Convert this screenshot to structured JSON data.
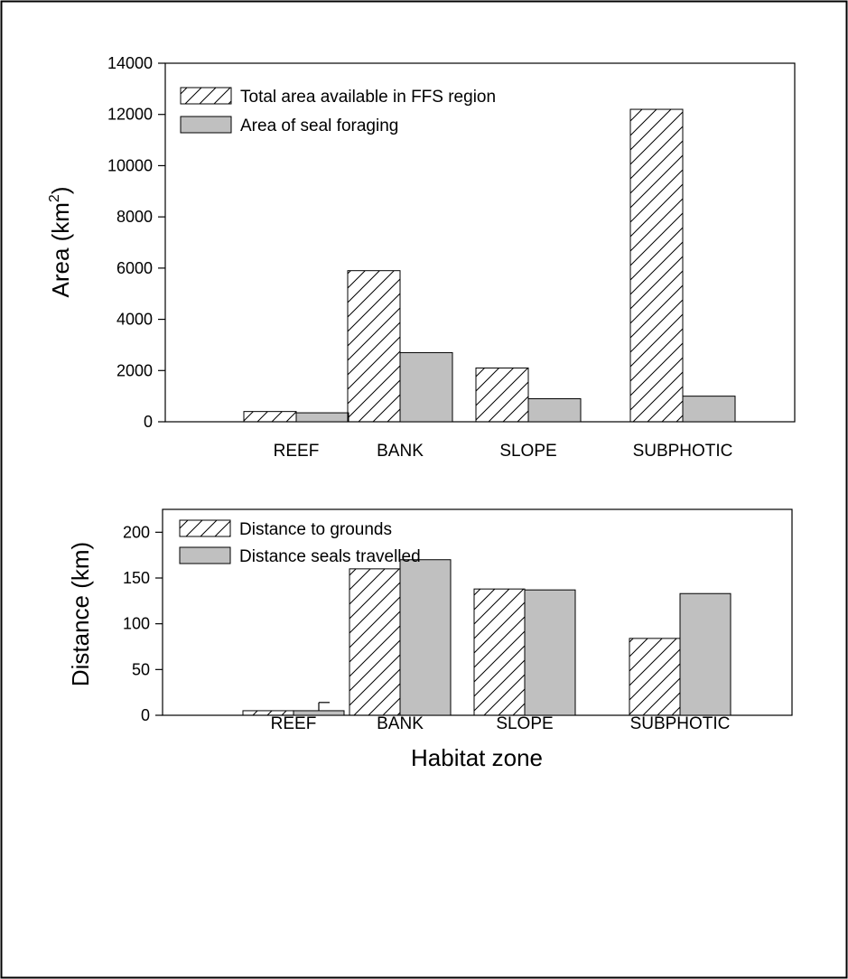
{
  "chart_data": [
    {
      "type": "bar",
      "categories": [
        "REEF",
        "BANK",
        "SLOPE",
        "SUBPHOTIC"
      ],
      "series": [
        {
          "name": "Total area available in FFS region",
          "values": [
            400,
            5900,
            2100,
            12200
          ],
          "pattern": "hatched"
        },
        {
          "name": "Area of seal foraging",
          "values": [
            350,
            2700,
            900,
            1000
          ],
          "pattern": "solid",
          "color": "#c0c0c0"
        }
      ],
      "ylabel": "Area (km",
      "ylabel_sup": "2",
      "ylabel_close": ")",
      "xlabel": "",
      "ylim": [
        0,
        14000
      ],
      "yticks": [
        0,
        2000,
        4000,
        6000,
        8000,
        10000,
        12000,
        14000
      ],
      "legend": "top-left",
      "grid": false
    },
    {
      "type": "bar",
      "categories": [
        "REEF",
        "BANK",
        "SLOPE",
        "SUBPHOTIC"
      ],
      "series": [
        {
          "name": "Distance to grounds",
          "values": [
            5,
            160,
            138,
            84
          ],
          "pattern": "hatched"
        },
        {
          "name": "Distance seals travelled",
          "values": [
            5,
            170,
            137,
            133
          ],
          "pattern": "solid",
          "color": "#c0c0c0",
          "error_bars": [
            9,
            null,
            null,
            null
          ]
        }
      ],
      "ylabel": "Distance (km)",
      "xlabel": "Habitat zone",
      "ylim": [
        0,
        225
      ],
      "yticks": [
        0,
        50,
        100,
        150,
        200
      ],
      "legend": "top-left",
      "grid": false
    }
  ]
}
